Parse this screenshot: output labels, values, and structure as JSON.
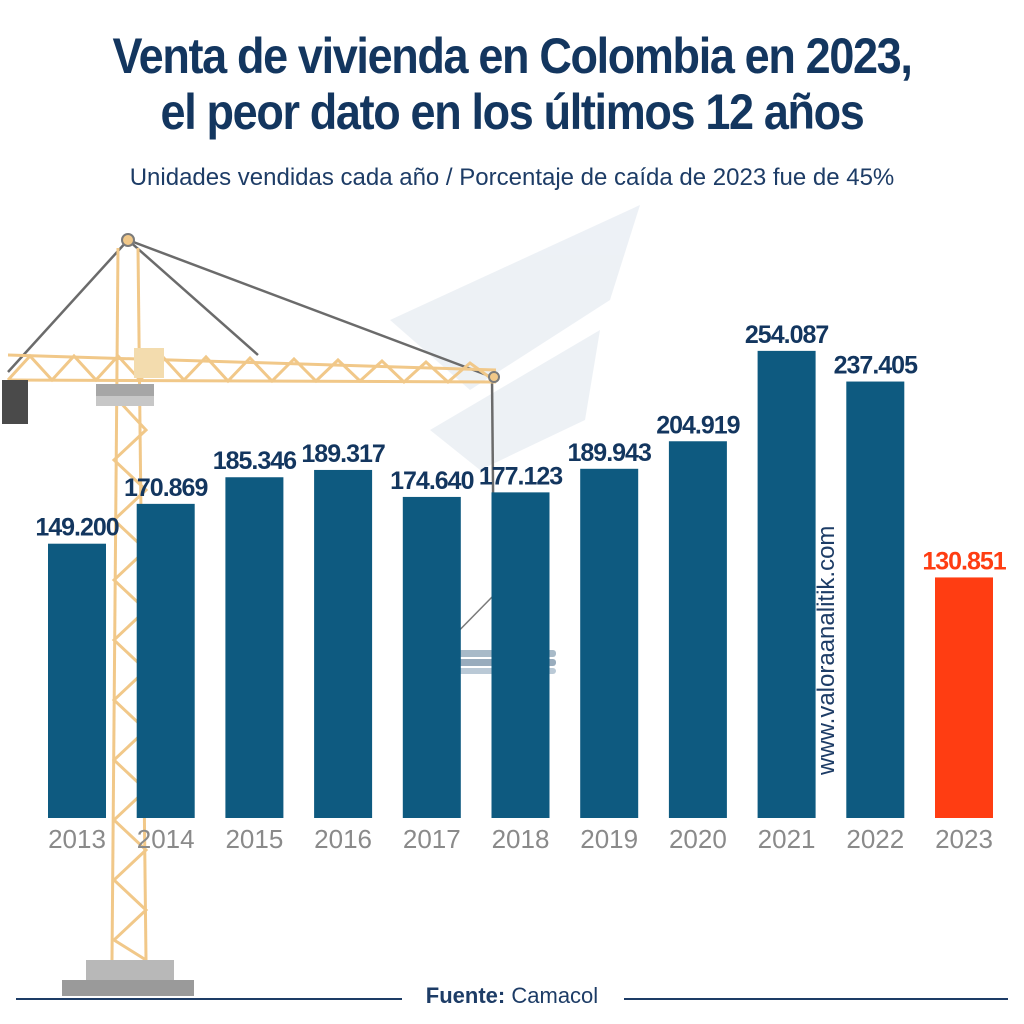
{
  "header": {
    "title_line1": "Venta de vivienda en Colombia en 2023,",
    "title_line2": "el peor dato en los últimos 12 años",
    "subtitle": "Unidades vendidas cada año / Porcentaje de caída de 2023 fue de 45%"
  },
  "watermark": "www.valoraanalitik.com",
  "footer": {
    "source_label": "Fuente:",
    "source_value": "Camacol"
  },
  "colors": {
    "bar": "#0e5a80",
    "highlight": "#ff3d12",
    "label": "#13365f",
    "highlight_label": "#ff3d12",
    "year": "#8a8a8a"
  },
  "chart_data": {
    "type": "bar",
    "title": "Venta de vivienda en Colombia en 2023, el peor dato en los últimos 12 años",
    "subtitle": "Unidades vendidas cada año / Porcentaje de caída de 2023 fue de 45%",
    "xlabel": "",
    "ylabel": "",
    "categories": [
      "2013",
      "2014",
      "2015",
      "2016",
      "2017",
      "2018",
      "2019",
      "2020",
      "2021",
      "2022",
      "2023"
    ],
    "values": [
      149200,
      170869,
      185346,
      189317,
      174640,
      177123,
      189943,
      204919,
      254087,
      237405,
      130851
    ],
    "data_labels": [
      "149.200",
      "170.869",
      "185.346",
      "189.317",
      "174.640",
      "177.123",
      "189.943",
      "204.919",
      "254.087",
      "237.405",
      "130.851"
    ],
    "highlight_category": "2023",
    "ylim": [
      0,
      260000
    ],
    "grid": false,
    "legend": "none"
  }
}
